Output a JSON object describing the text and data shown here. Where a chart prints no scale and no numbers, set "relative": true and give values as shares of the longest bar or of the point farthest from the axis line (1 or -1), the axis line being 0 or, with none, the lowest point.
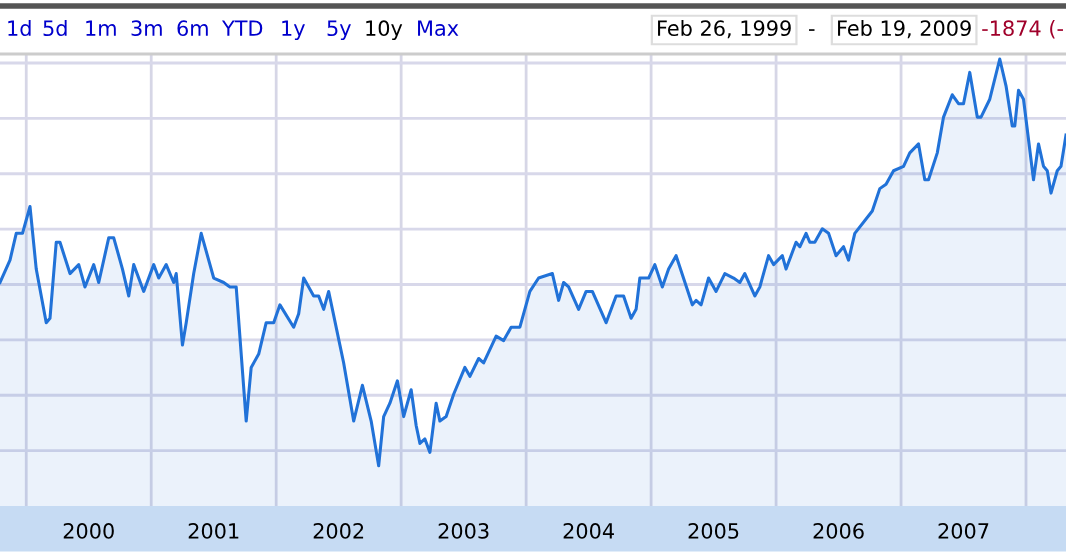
{
  "chart_data": {
    "type": "area",
    "relative": true,
    "grid": true,
    "x": [
      1999.79,
      1999.87,
      1999.92,
      1999.97,
      2000.03,
      2000.08,
      2000.16,
      2000.19,
      2000.24,
      2000.27,
      2000.35,
      2000.42,
      2000.47,
      2000.54,
      2000.58,
      2000.66,
      2000.7,
      2000.77,
      2000.82,
      2000.86,
      2000.94,
      2001.02,
      2001.06,
      2001.12,
      2001.18,
      2001.2,
      2001.25,
      2001.28,
      2001.34,
      2001.4,
      2001.5,
      2001.58,
      2001.63,
      2001.68,
      2001.76,
      2001.8,
      2001.86,
      2001.92,
      2001.98,
      2002.03,
      2002.14,
      2002.18,
      2002.22,
      2002.3,
      2002.34,
      2002.38,
      2002.42,
      2002.51,
      2002.54,
      2002.62,
      2002.69,
      2002.76,
      2002.82,
      2002.86,
      2002.91,
      2002.97,
      2003.02,
      2003.08,
      2003.12,
      2003.15,
      2003.19,
      2003.23,
      2003.28,
      2003.31,
      2003.36,
      2003.42,
      2003.51,
      2003.55,
      2003.62,
      2003.66,
      2003.76,
      2003.82,
      2003.88,
      2003.95,
      2004.03,
      2004.1,
      2004.21,
      2004.26,
      2004.3,
      2004.34,
      2004.42,
      2004.48,
      2004.53,
      2004.64,
      2004.72,
      2004.78,
      2004.84,
      2004.88,
      2004.91,
      2004.98,
      2005.03,
      2005.09,
      2005.14,
      2005.2,
      2005.33,
      2005.36,
      2005.4,
      2005.46,
      2005.52,
      2005.59,
      2005.66,
      2005.71,
      2005.75,
      2005.83,
      2005.87,
      2005.94,
      2005.98,
      2006.05,
      2006.08,
      2006.16,
      2006.19,
      2006.24,
      2006.27,
      2006.31,
      2006.37,
      2006.42,
      2006.48,
      2006.54,
      2006.58,
      2006.63,
      2006.77,
      2006.83,
      2006.88,
      2006.94,
      2007.02,
      2007.07,
      2007.14,
      2007.19,
      2007.22,
      2007.29,
      2007.34,
      2007.41,
      2007.46,
      2007.5,
      2007.55,
      2007.61,
      2007.64,
      2007.71,
      2007.79,
      2007.84,
      2007.89,
      2007.91,
      2007.94,
      2007.98,
      2008.06,
      2008.1,
      2008.14,
      2008.17,
      2008.2,
      2008.25,
      2008.28,
      2008.32
    ],
    "series": [
      {
        "color": "#2172d8",
        "values": [
          0.5,
          0.55,
          0.61,
          0.61,
          0.67,
          0.53,
          0.41,
          0.42,
          0.59,
          0.59,
          0.52,
          0.54,
          0.49,
          0.54,
          0.5,
          0.6,
          0.6,
          0.53,
          0.47,
          0.54,
          0.48,
          0.54,
          0.51,
          0.54,
          0.5,
          0.52,
          0.36,
          0.41,
          0.52,
          0.61,
          0.51,
          0.5,
          0.49,
          0.49,
          0.19,
          0.31,
          0.34,
          0.41,
          0.41,
          0.45,
          0.4,
          0.43,
          0.51,
          0.47,
          0.47,
          0.44,
          0.48,
          0.36,
          0.32,
          0.19,
          0.27,
          0.19,
          0.09,
          0.2,
          0.23,
          0.28,
          0.2,
          0.26,
          0.18,
          0.14,
          0.15,
          0.12,
          0.23,
          0.19,
          0.2,
          0.25,
          0.31,
          0.29,
          0.33,
          0.32,
          0.38,
          0.37,
          0.4,
          0.4,
          0.48,
          0.51,
          0.52,
          0.46,
          0.5,
          0.49,
          0.44,
          0.48,
          0.48,
          0.41,
          0.47,
          0.47,
          0.42,
          0.44,
          0.51,
          0.51,
          0.54,
          0.49,
          0.53,
          0.56,
          0.45,
          0.46,
          0.45,
          0.51,
          0.48,
          0.52,
          0.51,
          0.5,
          0.52,
          0.47,
          0.49,
          0.56,
          0.54,
          0.56,
          0.53,
          0.59,
          0.58,
          0.61,
          0.59,
          0.59,
          0.62,
          0.61,
          0.56,
          0.58,
          0.55,
          0.61,
          0.66,
          0.71,
          0.72,
          0.75,
          0.76,
          0.79,
          0.81,
          0.73,
          0.73,
          0.79,
          0.87,
          0.92,
          0.9,
          0.9,
          0.97,
          0.87,
          0.87,
          0.91,
          1.0,
          0.94,
          0.85,
          0.85,
          0.93,
          0.91,
          0.73,
          0.81,
          0.76,
          0.75,
          0.7,
          0.75,
          0.76,
          0.83
        ]
      }
    ],
    "xlim": [
      1999.79,
      2008.32
    ],
    "xticks": [
      {
        "value": 2000,
        "label": null
      },
      {
        "value": 2000.5,
        "label": "2000"
      },
      {
        "value": 2001,
        "label": null
      },
      {
        "value": 2001.5,
        "label": "2001"
      },
      {
        "value": 2002,
        "label": null
      },
      {
        "value": 2002.5,
        "label": "2002"
      },
      {
        "value": 2003,
        "label": null
      },
      {
        "value": 2003.5,
        "label": "2003"
      },
      {
        "value": 2004,
        "label": null
      },
      {
        "value": 2004.5,
        "label": "2004"
      },
      {
        "value": 2005,
        "label": null
      },
      {
        "value": 2005.5,
        "label": "2005"
      },
      {
        "value": 2006,
        "label": null
      },
      {
        "value": 2006.5,
        "label": "2006"
      },
      {
        "value": 2007,
        "label": null
      },
      {
        "value": 2007.5,
        "label": "2007"
      },
      {
        "value": 2008,
        "label": null
      }
    ],
    "annotations": [
      "1d",
      "5d",
      "1m",
      "3m",
      "6m",
      "YTD",
      "1y",
      "5y",
      "10y",
      "Max",
      "Feb 26, 1999",
      "-",
      "Feb 19, 2009",
      "-1874 (-"
    ]
  }
}
